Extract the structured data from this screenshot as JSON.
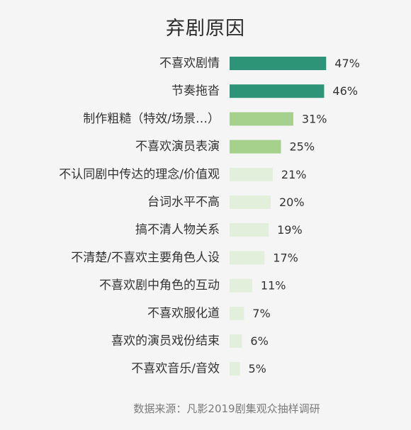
{
  "chart_data": {
    "type": "bar",
    "orientation": "horizontal",
    "title": "弃剧原因",
    "categories": [
      "不喜欢剧情",
      "节奏拖沓",
      "制作粗糙（特效/场景…）",
      "不喜欢演员表演",
      "不认同剧中传达的理念/价值观",
      "台词水平不高",
      "搞不清人物关系",
      "不清楚/不喜欢主要角色人设",
      "不喜欢剧中角色的互动",
      "不喜欢服化道",
      "喜欢的演员戏份结束",
      "不喜欢音乐/音效"
    ],
    "values": [
      47,
      46,
      31,
      25,
      21,
      20,
      19,
      17,
      11,
      7,
      6,
      5
    ],
    "value_labels": [
      "47%",
      "46%",
      "31%",
      "25%",
      "21%",
      "20%",
      "19%",
      "17%",
      "11%",
      "7%",
      "6%",
      "5%"
    ],
    "value_unit": "%",
    "bar_colors": [
      "#2e9477",
      "#2e9477",
      "#a6d18d",
      "#a6d18d",
      "#e2efdb",
      "#e2efdb",
      "#e2efdb",
      "#e2efdb",
      "#e2efdb",
      "#e2efdb",
      "#e2efdb",
      "#e2efdb"
    ],
    "grid": false
  },
  "source": "数据来源：凡影2019剧集观众抽样调研"
}
